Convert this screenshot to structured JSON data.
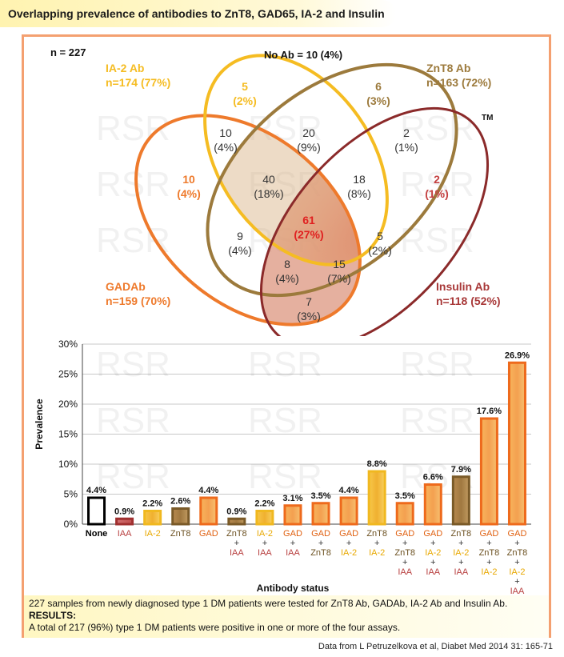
{
  "title": "Overlapping prevalence of antibodies to ZnT8, GAD65, IA-2 and Insulin",
  "venn": {
    "n_label": "n = 227",
    "no_ab": "No Ab = 10 (4%)",
    "tm": "TM",
    "sets": [
      {
        "name": "IA-2 Ab",
        "count": "n=174 (77%)",
        "color": "#f5bc22"
      },
      {
        "name": "ZnT8 Ab",
        "count": "n=163 (72%)",
        "color": "#9c7a3c"
      },
      {
        "name": "GADAb",
        "count": "n=159 (70%)",
        "color": "#ee7a2c"
      },
      {
        "name": "Insulin Ab",
        "count": "n=118 (52%)",
        "color": "#a83838"
      }
    ],
    "regions": [
      {
        "count": "5",
        "pct": "(2%)",
        "color": "#f5bc22"
      },
      {
        "count": "6",
        "pct": "(3%)",
        "color": "#9c7a3c"
      },
      {
        "count": "10",
        "pct": "(4%)",
        "color": "#333333"
      },
      {
        "count": "20",
        "pct": "(9%)",
        "color": "#333333"
      },
      {
        "count": "2",
        "pct": "(1%)",
        "color": "#333333"
      },
      {
        "count": "10",
        "pct": "(4%)",
        "color": "#ee7a2c"
      },
      {
        "count": "40",
        "pct": "(18%)",
        "color": "#333333"
      },
      {
        "count": "18",
        "pct": "(8%)",
        "color": "#333333"
      },
      {
        "count": "2",
        "pct": "(1%)",
        "color": "#c44040"
      },
      {
        "count": "61",
        "pct": "(27%)",
        "color": "#e02020"
      },
      {
        "count": "9",
        "pct": "(4%)",
        "color": "#333333"
      },
      {
        "count": "5",
        "pct": "(2%)",
        "color": "#333333"
      },
      {
        "count": "8",
        "pct": "(4%)",
        "color": "#333333"
      },
      {
        "count": "15",
        "pct": "(7%)",
        "color": "#333333"
      },
      {
        "count": "7",
        "pct": "(3%)",
        "color": "#333333"
      }
    ]
  },
  "watermark": "RSR",
  "chart_data": {
    "type": "bar",
    "ylabel": "Prevalence",
    "xlabel": "Antibody status",
    "ylim": [
      0,
      30
    ],
    "yticks": [
      "0%",
      "5%",
      "10%",
      "15%",
      "20%",
      "25%",
      "30%"
    ],
    "grid": true,
    "categories": [
      {
        "lines": [
          {
            "t": "None",
            "c": "#000000"
          }
        ],
        "value": 4.4,
        "label": "4.4%",
        "kind": "none"
      },
      {
        "lines": [
          {
            "t": "IAA",
            "c": "#b84040"
          }
        ],
        "value": 0.9,
        "label": "0.9%",
        "kind": "iaa"
      },
      {
        "lines": [
          {
            "t": "IA-2",
            "c": "#e8a800"
          }
        ],
        "value": 2.2,
        "label": "2.2%",
        "kind": "ia2"
      },
      {
        "lines": [
          {
            "t": "ZnT8",
            "c": "#6b5020"
          }
        ],
        "value": 2.6,
        "label": "2.6%",
        "kind": "znt8"
      },
      {
        "lines": [
          {
            "t": "GAD",
            "c": "#e06010"
          }
        ],
        "value": 4.4,
        "label": "4.4%",
        "kind": "gad"
      },
      {
        "lines": [
          {
            "t": "ZnT8",
            "c": "#6b5020"
          },
          {
            "t": "+",
            "c": "#333333"
          },
          {
            "t": "IAA",
            "c": "#b84040"
          }
        ],
        "value": 0.9,
        "label": "0.9%",
        "kind": "znt8"
      },
      {
        "lines": [
          {
            "t": "IA-2",
            "c": "#e8a800"
          },
          {
            "t": "+",
            "c": "#333333"
          },
          {
            "t": "IAA",
            "c": "#b84040"
          }
        ],
        "value": 2.2,
        "label": "2.2%",
        "kind": "ia2"
      },
      {
        "lines": [
          {
            "t": "GAD",
            "c": "#e06010"
          },
          {
            "t": "+",
            "c": "#333333"
          },
          {
            "t": "IAA",
            "c": "#b84040"
          }
        ],
        "value": 3.1,
        "label": "3.1%",
        "kind": "gad"
      },
      {
        "lines": [
          {
            "t": "GAD",
            "c": "#e06010"
          },
          {
            "t": "+",
            "c": "#333333"
          },
          {
            "t": "ZnT8",
            "c": "#6b5020"
          }
        ],
        "value": 3.5,
        "label": "3.5%",
        "kind": "gad"
      },
      {
        "lines": [
          {
            "t": "GAD",
            "c": "#e06010"
          },
          {
            "t": "+",
            "c": "#333333"
          },
          {
            "t": "IA-2",
            "c": "#e8a800"
          }
        ],
        "value": 4.4,
        "label": "4.4%",
        "kind": "gad"
      },
      {
        "lines": [
          {
            "t": "ZnT8",
            "c": "#6b5020"
          },
          {
            "t": "+",
            "c": "#333333"
          },
          {
            "t": "IA-2",
            "c": "#e8a800"
          }
        ],
        "value": 8.8,
        "label": "8.8%",
        "kind": "ia2"
      },
      {
        "lines": [
          {
            "t": "GAD",
            "c": "#e06010"
          },
          {
            "t": "+",
            "c": "#333333"
          },
          {
            "t": "ZnT8",
            "c": "#6b5020"
          },
          {
            "t": "+",
            "c": "#333333"
          },
          {
            "t": "IAA",
            "c": "#b84040"
          }
        ],
        "value": 3.5,
        "label": "3.5%",
        "kind": "gad"
      },
      {
        "lines": [
          {
            "t": "GAD",
            "c": "#e06010"
          },
          {
            "t": "+",
            "c": "#333333"
          },
          {
            "t": "IA-2",
            "c": "#e8a800"
          },
          {
            "t": "+",
            "c": "#333333"
          },
          {
            "t": "IAA",
            "c": "#b84040"
          }
        ],
        "value": 6.6,
        "label": "6.6%",
        "kind": "gad"
      },
      {
        "lines": [
          {
            "t": "ZnT8",
            "c": "#6b5020"
          },
          {
            "t": "+",
            "c": "#333333"
          },
          {
            "t": "IA-2",
            "c": "#e8a800"
          },
          {
            "t": "+",
            "c": "#333333"
          },
          {
            "t": "IAA",
            "c": "#b84040"
          }
        ],
        "value": 7.9,
        "label": "7.9%",
        "kind": "znt8"
      },
      {
        "lines": [
          {
            "t": "GAD",
            "c": "#e06010"
          },
          {
            "t": "+",
            "c": "#333333"
          },
          {
            "t": "ZnT8",
            "c": "#6b5020"
          },
          {
            "t": "+",
            "c": "#333333"
          },
          {
            "t": "IA-2",
            "c": "#e8a800"
          }
        ],
        "value": 17.6,
        "label": "17.6%",
        "kind": "gad"
      },
      {
        "lines": [
          {
            "t": "GAD",
            "c": "#e06010"
          },
          {
            "t": "+",
            "c": "#333333"
          },
          {
            "t": "ZnT8",
            "c": "#6b5020"
          },
          {
            "t": "+",
            "c": "#333333"
          },
          {
            "t": "IA-2",
            "c": "#e8a800"
          },
          {
            "t": "+",
            "c": "#333333"
          },
          {
            "t": "IAA",
            "c": "#b84040"
          }
        ],
        "value": 26.9,
        "label": "26.9%",
        "kind": "gad"
      }
    ]
  },
  "notes": {
    "line1": "227 samples from newly diagnosed  type 1 DM patients were tested for ZnT8 Ab, GADAb, IA-2 Ab and Insulin Ab.",
    "results_label": "RESULTS:",
    "line2": "A total of 217 (96%) type 1 DM patients were positive in one or more of the four assays."
  },
  "citation": "Data from L Petruzelkova et al, Diabet Med 2014 31: 165-71",
  "colors": {
    "frame": "#f4a070",
    "gad_bar": "#ee7a2c",
    "ia2_bar": "#f5bc22",
    "znt8_bar": "#8e6a30",
    "iaa_bar": "#b84040"
  }
}
